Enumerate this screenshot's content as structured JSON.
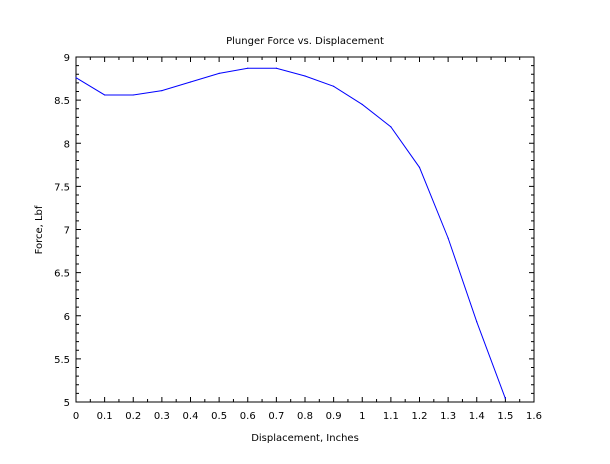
{
  "chart_data": {
    "type": "line",
    "title": "Plunger Force vs. Displacement",
    "xlabel": "Displacement, Inches",
    "ylabel": "Force, Lbf",
    "xlim": [
      0,
      1.6
    ],
    "ylim": [
      5,
      9
    ],
    "x_ticks": [
      0,
      0.1,
      0.2,
      0.3,
      0.4,
      0.5,
      0.6,
      0.7,
      0.8,
      0.9,
      1,
      1.1,
      1.2,
      1.3,
      1.4,
      1.5,
      1.6
    ],
    "x_tick_labels": [
      "0",
      "0.1",
      "0.2",
      "0.3",
      "0.4",
      "0.5",
      "0.6",
      "0.7",
      "0.8",
      "0.9",
      "1",
      "1.1",
      "1.2",
      "1.3",
      "1.4",
      "1.5",
      "1.6"
    ],
    "y_ticks": [
      5,
      5.5,
      6,
      6.5,
      7,
      7.5,
      8,
      8.5,
      9
    ],
    "y_tick_labels": [
      "5",
      "5.5",
      "6",
      "6.5",
      "7",
      "7.5",
      "8",
      "8.5",
      "9"
    ],
    "grid": false,
    "legend": "none",
    "series": [
      {
        "color": "#0000ff",
        "x": [
          0,
          0.1,
          0.2,
          0.3,
          0.4,
          0.5,
          0.6,
          0.7,
          0.8,
          0.9,
          1.0,
          1.1,
          1.2,
          1.3,
          1.4,
          1.5
        ],
        "y": [
          8.76,
          8.56,
          8.56,
          8.61,
          8.71,
          8.81,
          8.87,
          8.87,
          8.78,
          8.66,
          8.45,
          8.19,
          7.72,
          6.9,
          5.93,
          5.04
        ]
      }
    ]
  }
}
